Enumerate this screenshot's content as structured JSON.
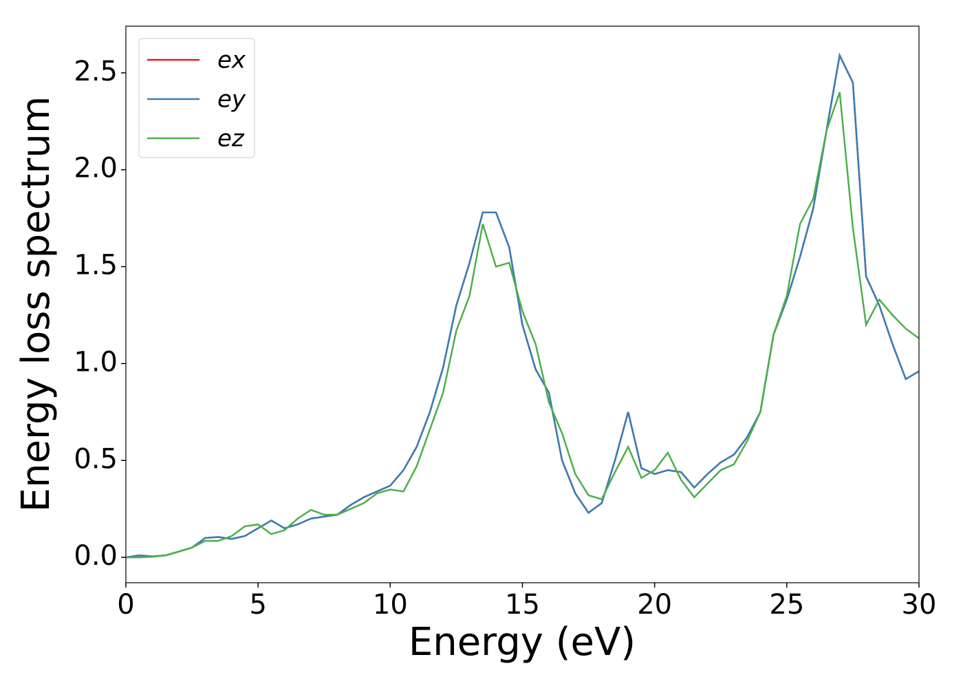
{
  "chart_data": {
    "type": "line",
    "xlabel": "Energy (eV)",
    "ylabel": "Energy loss spectrum",
    "x": [
      0,
      0.5,
      1,
      1.5,
      2,
      2.5,
      3,
      3.5,
      4,
      4.5,
      5,
      5.5,
      6,
      6.5,
      7,
      7.5,
      8,
      8.5,
      9,
      9.5,
      10,
      10.5,
      11,
      11.5,
      12,
      12.5,
      13,
      13.5,
      14,
      14.5,
      15,
      15.5,
      16,
      16.5,
      17,
      17.5,
      18,
      18.5,
      19,
      19.5,
      20,
      20.5,
      21,
      21.5,
      22,
      22.5,
      23,
      23.5,
      24,
      24.5,
      25,
      25.5,
      26,
      26.5,
      27,
      27.5,
      28,
      28.5,
      29,
      29.5,
      30
    ],
    "series": [
      {
        "name": "ex",
        "color": "#e41a1c",
        "values": [
          0,
          0.01,
          0.005,
          0.01,
          0.03,
          0.05,
          0.1,
          0.105,
          0.095,
          0.11,
          0.15,
          0.19,
          0.15,
          0.17,
          0.2,
          0.21,
          0.22,
          0.27,
          0.31,
          0.34,
          0.37,
          0.45,
          0.57,
          0.75,
          0.98,
          1.3,
          1.52,
          1.78,
          1.78,
          1.6,
          1.2,
          0.97,
          0.85,
          0.5,
          0.33,
          0.23,
          0.28,
          0.5,
          0.75,
          0.46,
          0.43,
          0.45,
          0.44,
          0.36,
          0.43,
          0.49,
          0.53,
          0.62,
          0.75,
          1.15,
          1.33,
          1.55,
          1.8,
          2.2,
          2.59,
          2.45,
          1.45,
          1.3,
          1.1,
          0.92,
          0.96
        ]
      },
      {
        "name": "ey",
        "color": "#377eb8",
        "values": [
          0,
          0.01,
          0.005,
          0.01,
          0.03,
          0.05,
          0.1,
          0.105,
          0.095,
          0.11,
          0.15,
          0.19,
          0.15,
          0.17,
          0.2,
          0.21,
          0.22,
          0.27,
          0.31,
          0.34,
          0.37,
          0.45,
          0.57,
          0.75,
          0.98,
          1.3,
          1.52,
          1.78,
          1.78,
          1.6,
          1.2,
          0.97,
          0.85,
          0.5,
          0.33,
          0.23,
          0.28,
          0.5,
          0.75,
          0.46,
          0.43,
          0.45,
          0.44,
          0.36,
          0.43,
          0.49,
          0.53,
          0.62,
          0.75,
          1.15,
          1.33,
          1.55,
          1.8,
          2.2,
          2.59,
          2.45,
          1.45,
          1.3,
          1.1,
          0.92,
          0.96
        ]
      },
      {
        "name": "ez",
        "color": "#4daf4a",
        "values": [
          0,
          0,
          0.003,
          0.01,
          0.03,
          0.05,
          0.085,
          0.085,
          0.11,
          0.16,
          0.17,
          0.12,
          0.14,
          0.2,
          0.245,
          0.22,
          0.22,
          0.25,
          0.28,
          0.33,
          0.35,
          0.34,
          0.47,
          0.66,
          0.85,
          1.17,
          1.35,
          1.72,
          1.5,
          1.52,
          1.27,
          1.1,
          0.8,
          0.64,
          0.43,
          0.32,
          0.3,
          0.44,
          0.57,
          0.41,
          0.45,
          0.54,
          0.4,
          0.31,
          0.38,
          0.45,
          0.48,
          0.6,
          0.75,
          1.15,
          1.35,
          1.72,
          1.85,
          2.2,
          2.4,
          1.7,
          1.2,
          1.33,
          1.25,
          1.18,
          1.13
        ]
      }
    ],
    "xlim": [
      0,
      30
    ],
    "xticks": [
      0,
      5,
      10,
      15,
      20,
      25,
      30
    ],
    "ylim": [
      -0.131,
      2.741
    ],
    "yticks": [
      {
        "value": 0,
        "label": "0.0"
      },
      0.5,
      {
        "value": 1,
        "label": "1.0"
      },
      1.5,
      {
        "value": 2,
        "label": "2.0"
      },
      2.5
    ],
    "legend": "upper left"
  }
}
